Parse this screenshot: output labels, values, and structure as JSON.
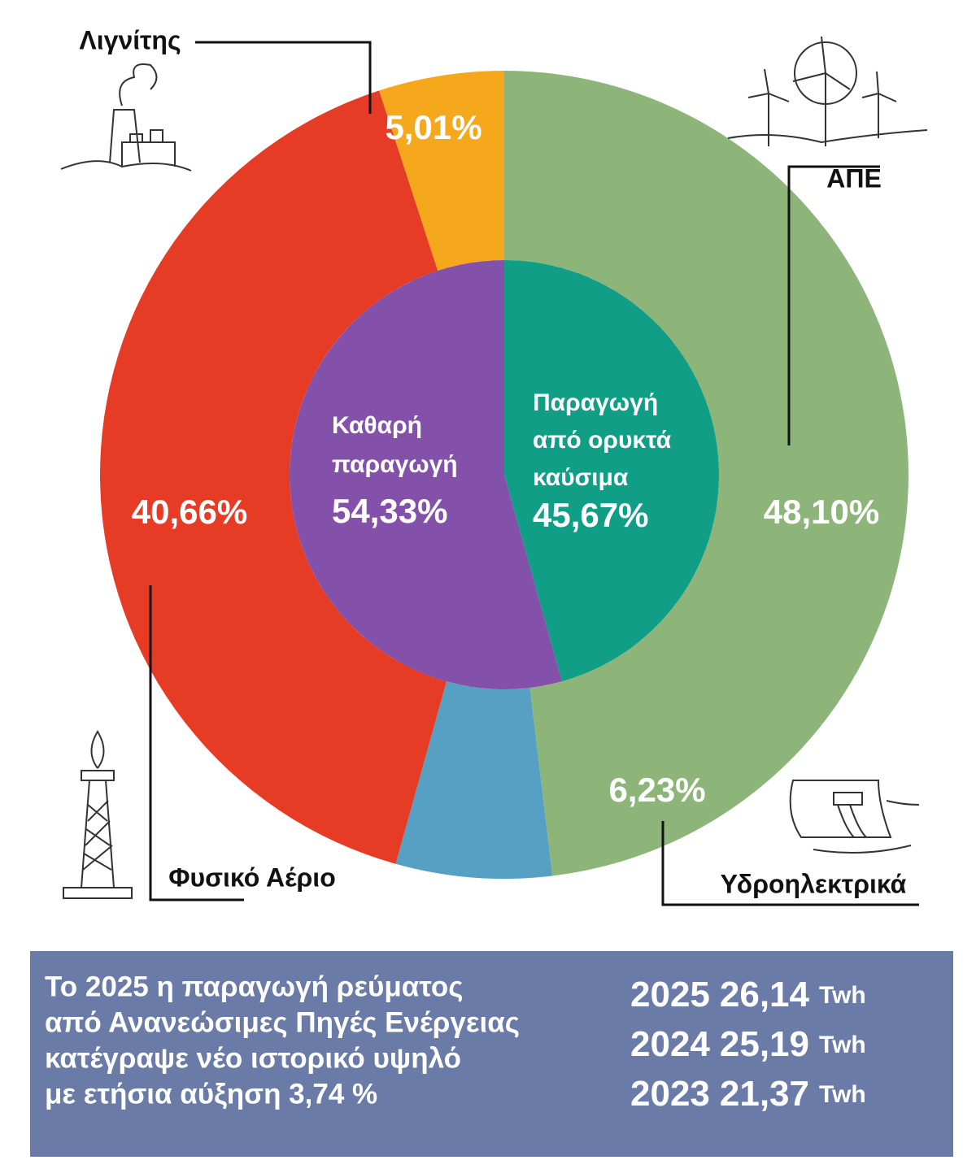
{
  "chart_data": {
    "type": "donut",
    "outer": {
      "categories": [
        "ΑΠΕ",
        "Υδροηλεκτρικά",
        "Φυσικό Αέριο",
        "Λιγνίτης"
      ],
      "values": [
        48.1,
        6.23,
        40.66,
        5.01
      ],
      "value_labels": [
        "48,10%",
        "6,23%",
        "40,66%",
        "5,01%"
      ],
      "colors": [
        "#8db57a",
        "#55a0c3",
        "#e63c26",
        "#f6a81c"
      ]
    },
    "inner": {
      "categories": [
        [
          "Παραγωγή",
          "από ορυκτά",
          "καύσιμα"
        ],
        [
          "Καθαρή",
          "παραγωγή"
        ]
      ],
      "values": [
        45.67,
        54.33
      ],
      "value_labels": [
        "45,67%",
        "54,33%"
      ],
      "colors": [
        "#119e87",
        "#8351a9"
      ]
    }
  },
  "note": {
    "lines": [
      "Το 2025 η παραγωγή ρεύματος",
      "από Ανανεώσιμες Πηγές Ενέργειας",
      "κατέγραψε νέο ιστορικό υψηλό",
      "με ετήσια αύξηση 3,74 %"
    ],
    "production": [
      {
        "year": "2025",
        "value": "26,14",
        "unit": "Twh"
      },
      {
        "year": "2024",
        "value": "25,19",
        "unit": "Twh"
      },
      {
        "year": "2023",
        "value": "21,37",
        "unit": "Twh"
      }
    ]
  }
}
